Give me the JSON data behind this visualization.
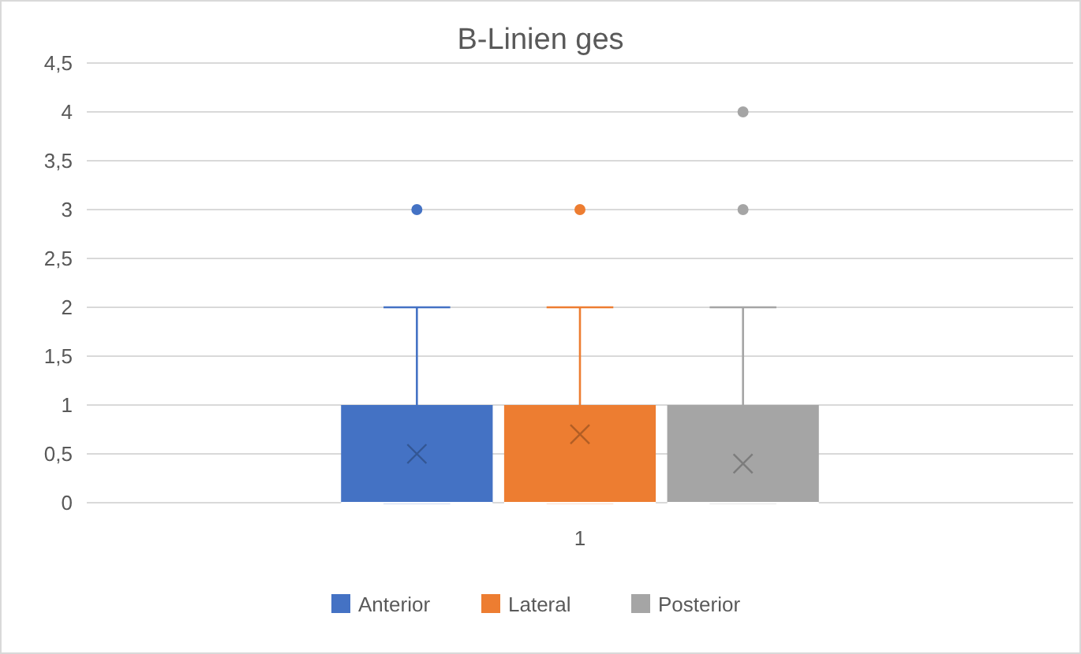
{
  "chart_data": {
    "type": "box",
    "title": "B-Linien ges",
    "categories": [
      "1"
    ],
    "series": [
      {
        "name": "Anterior",
        "color": "#4472c4",
        "boxes": [
          {
            "low": 0,
            "q1": 0,
            "median": 0,
            "q3": 1,
            "high": 2,
            "mean": 0.5,
            "outliers": [
              3
            ]
          }
        ]
      },
      {
        "name": "Lateral",
        "color": "#ed7d31",
        "boxes": [
          {
            "low": 0,
            "q1": 0,
            "median": 0,
            "q3": 1,
            "high": 2,
            "mean": 0.7,
            "outliers": [
              3
            ]
          }
        ]
      },
      {
        "name": "Posterior",
        "color": "#a5a5a5",
        "boxes": [
          {
            "low": 0,
            "q1": 0,
            "median": 0,
            "q3": 1,
            "high": 2,
            "mean": 0.4,
            "outliers": [
              3,
              4
            ]
          }
        ]
      }
    ],
    "ylim": [
      0,
      4.5
    ],
    "yticks": [
      0,
      {
        "value": 0.5,
        "label": "0,5"
      },
      1,
      {
        "value": 1.5,
        "label": "1,5"
      },
      2,
      {
        "value": 2.5,
        "label": "2,5"
      },
      3,
      {
        "value": 3.5,
        "label": "3,5"
      },
      4,
      {
        "value": 4.5,
        "label": "4,5"
      }
    ],
    "grid": "y",
    "legend": "bottom"
  }
}
